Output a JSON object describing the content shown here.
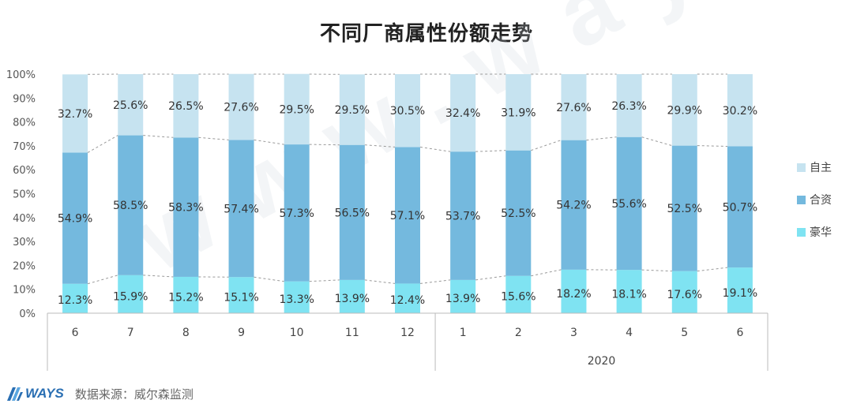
{
  "chart_data": {
    "type": "bar",
    "stacked": true,
    "title": "不同厂商属性份额走势",
    "categories": [
      "6",
      "7",
      "8",
      "9",
      "10",
      "11",
      "12",
      "1",
      "2",
      "3",
      "4",
      "5",
      "6"
    ],
    "year_group": {
      "label": "2020",
      "start_index": 7,
      "end_index": 12
    },
    "y_ticks": [
      "0%",
      "10%",
      "20%",
      "30%",
      "40%",
      "50%",
      "60%",
      "70%",
      "80%",
      "90%",
      "100%"
    ],
    "ylim": [
      0,
      100
    ],
    "series": [
      {
        "name": "豪华",
        "color": "#7fe3f2",
        "values": [
          12.3,
          15.9,
          15.2,
          15.1,
          13.3,
          13.9,
          12.4,
          13.9,
          15.6,
          18.2,
          18.1,
          17.6,
          19.1
        ],
        "labels": [
          "12.3%",
          "15.9%",
          "15.2%",
          "15.1%",
          "13.3%",
          "13.9%",
          "12.4%",
          "13.9%",
          "15.6%",
          "18.2%",
          "18.1%",
          "17.6%",
          "19.1%"
        ]
      },
      {
        "name": "合资",
        "color": "#74b9de",
        "values": [
          54.9,
          58.5,
          58.3,
          57.4,
          57.3,
          56.5,
          57.1,
          53.7,
          52.5,
          54.2,
          55.6,
          52.5,
          50.7
        ],
        "labels": [
          "54.9%",
          "58.5%",
          "58.3%",
          "57.4%",
          "57.3%",
          "56.5%",
          "57.1%",
          "53.7%",
          "52.5%",
          "54.2%",
          "55.6%",
          "52.5%",
          "50.7%"
        ]
      },
      {
        "name": "自主",
        "color": "#c6e3f0",
        "values": [
          32.7,
          25.6,
          26.5,
          27.6,
          29.5,
          29.5,
          30.5,
          32.4,
          31.9,
          27.6,
          26.3,
          29.9,
          30.2
        ],
        "labels": [
          "32.7%",
          "25.6%",
          "26.5%",
          "27.6%",
          "29.5%",
          "29.5%",
          "30.5%",
          "32.4%",
          "31.9%",
          "27.6%",
          "26.3%",
          "29.9%",
          "30.2%"
        ]
      }
    ],
    "legend_position": "right",
    "series_lines": "dashed"
  },
  "footer": {
    "logo_text": "WAYS",
    "source_text": "数据来源：威尔森监测"
  },
  "watermark_text": "www.ways.cn"
}
